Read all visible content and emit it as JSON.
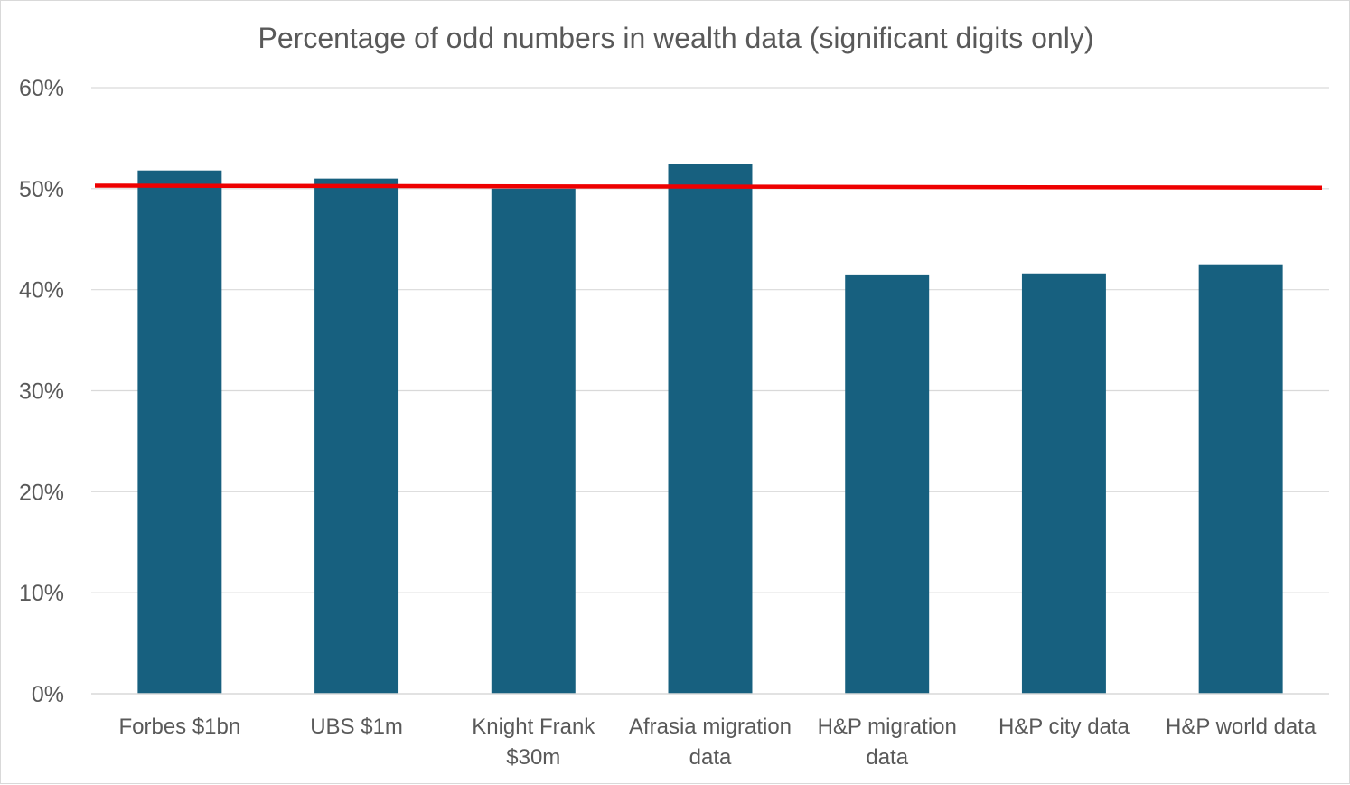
{
  "chart_data": {
    "type": "bar",
    "title": "Percentage of odd numbers in wealth data (significant digits only)",
    "xlabel": "",
    "ylabel": "",
    "categories": [
      [
        "Forbes $1bn"
      ],
      [
        "UBS $1m"
      ],
      [
        "Knight Frank",
        "$30m"
      ],
      [
        "Afrasia migration",
        "data"
      ],
      [
        "H&P migration",
        "data"
      ],
      [
        "H&P city data"
      ],
      [
        "H&P world data"
      ]
    ],
    "values": [
      51.8,
      51.0,
      50.0,
      52.4,
      41.5,
      41.6,
      42.5
    ],
    "ylim": [
      0,
      60
    ],
    "yticks": [
      0,
      10,
      20,
      30,
      40,
      50,
      60
    ],
    "ytick_labels": [
      "0%",
      "10%",
      "20%",
      "30%",
      "40%",
      "50%",
      "60%"
    ],
    "grid": true,
    "bar_color": "#17607f",
    "reference_line": {
      "y_start": 50.3,
      "y_end": 50.1,
      "color": "#ee0000"
    }
  }
}
